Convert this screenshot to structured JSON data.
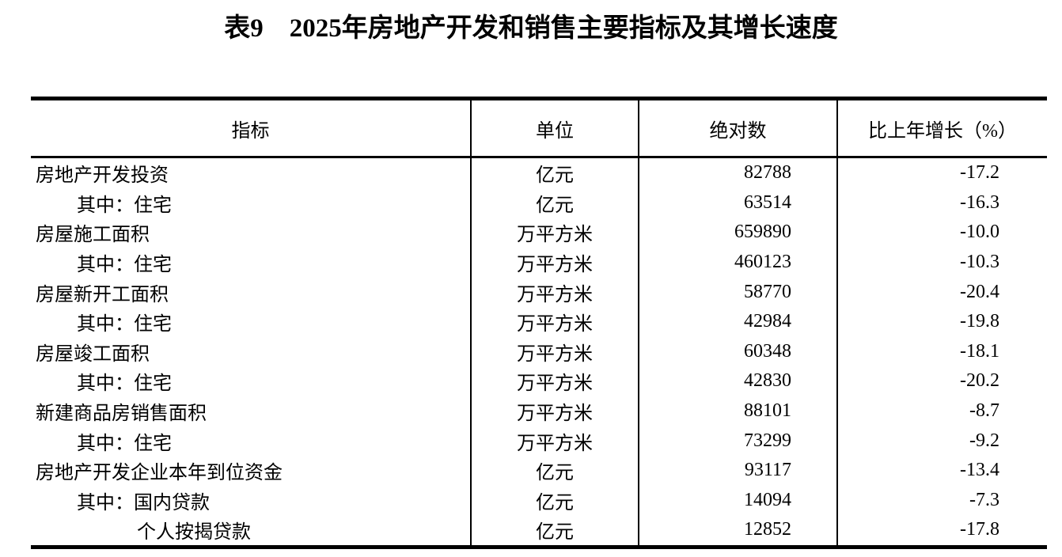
{
  "title": "表9　2025年房地产开发和销售主要指标及其增长速度",
  "colors": {
    "background": "#ffffff",
    "text": "#000000",
    "border": "#000000"
  },
  "table": {
    "columns": [
      "指标",
      "单位",
      "绝对数",
      "比上年增长（%）"
    ],
    "rows": [
      {
        "indicator": "房地产开发投资",
        "indent": 0,
        "unit": "亿元",
        "value": "82788",
        "growth": "-17.2"
      },
      {
        "indicator": "其中：住宅",
        "indent": 1,
        "unit": "亿元",
        "value": "63514",
        "growth": "-16.3"
      },
      {
        "indicator": "房屋施工面积",
        "indent": 0,
        "unit": "万平方米",
        "value": "659890",
        "growth": "-10.0"
      },
      {
        "indicator": "其中：住宅",
        "indent": 1,
        "unit": "万平方米",
        "value": "460123",
        "growth": "-10.3"
      },
      {
        "indicator": "房屋新开工面积",
        "indent": 0,
        "unit": "万平方米",
        "value": "58770",
        "growth": "-20.4"
      },
      {
        "indicator": "其中：住宅",
        "indent": 1,
        "unit": "万平方米",
        "value": "42984",
        "growth": "-19.8"
      },
      {
        "indicator": "房屋竣工面积",
        "indent": 0,
        "unit": "万平方米",
        "value": "60348",
        "growth": "-18.1"
      },
      {
        "indicator": "其中：住宅",
        "indent": 1,
        "unit": "万平方米",
        "value": "42830",
        "growth": "-20.2"
      },
      {
        "indicator": "新建商品房销售面积",
        "indent": 0,
        "unit": "万平方米",
        "value": "88101",
        "growth": "-8.7"
      },
      {
        "indicator": "其中：住宅",
        "indent": 1,
        "unit": "万平方米",
        "value": "73299",
        "growth": "-9.2"
      },
      {
        "indicator": "房地产开发企业本年到位资金",
        "indent": 0,
        "unit": "亿元",
        "value": "93117",
        "growth": "-13.4"
      },
      {
        "indicator": "其中：国内贷款",
        "indent": 1,
        "unit": "亿元",
        "value": "14094",
        "growth": "-7.3"
      },
      {
        "indicator": "个人按揭贷款",
        "indent": 2,
        "unit": "亿元",
        "value": "12852",
        "growth": "-17.8"
      }
    ]
  }
}
